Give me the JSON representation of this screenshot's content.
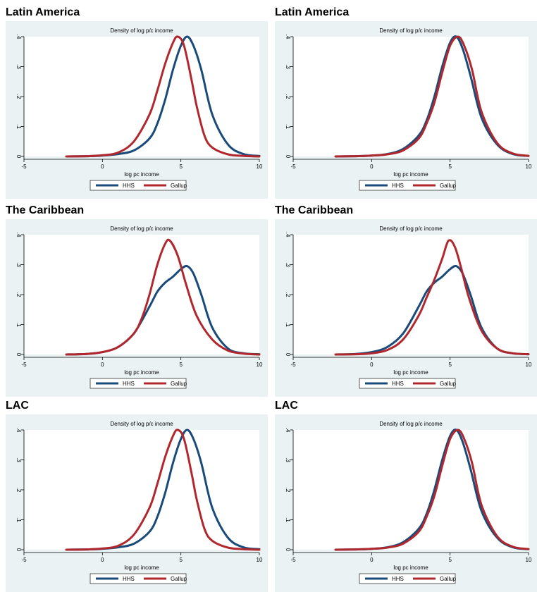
{
  "colors": {
    "hhs": "#1a4a7a",
    "gallup": "#b0282e",
    "bg": "#eaf2f3"
  },
  "chart_data": [
    {
      "type": "line",
      "title": "Latin America",
      "subtitle": "Density of log p/c income",
      "xlabel": "log pc income",
      "ylabel": "",
      "xlim": [
        -5,
        10
      ],
      "ylim": [
        0,
        0.4
      ],
      "xticks": [
        "-5",
        "0",
        "5",
        "10"
      ],
      "yticks": [
        "0",
        ".1",
        ".2",
        ".3",
        ".4"
      ],
      "legend_position": "bottom",
      "series": [
        {
          "name": "HHS",
          "color": "#1a4a7a",
          "x": [
            -2.3,
            -1,
            0,
            1,
            2,
            3,
            3.5,
            4,
            4.5,
            5,
            5.4,
            5.8,
            6.3,
            7,
            8,
            9,
            10
          ],
          "y": [
            0,
            0.001,
            0.003,
            0.008,
            0.02,
            0.06,
            0.11,
            0.19,
            0.29,
            0.37,
            0.4,
            0.37,
            0.29,
            0.14,
            0.04,
            0.008,
            0.002
          ]
        },
        {
          "name": "Gallup",
          "color": "#b0282e",
          "x": [
            -2.3,
            -1,
            0,
            1,
            2,
            3,
            3.5,
            4,
            4.5,
            4.8,
            5.2,
            5.7,
            6,
            6.5,
            7,
            8,
            9,
            10
          ],
          "y": [
            0,
            0.001,
            0.004,
            0.013,
            0.05,
            0.14,
            0.22,
            0.31,
            0.38,
            0.4,
            0.37,
            0.25,
            0.17,
            0.07,
            0.03,
            0.007,
            0.002,
            0
          ]
        }
      ]
    },
    {
      "type": "line",
      "title": "Latin America",
      "subtitle": "Density of log p/c income",
      "xlabel": "log pc income",
      "ylabel": "",
      "xlim": [
        -5,
        10
      ],
      "ylim": [
        0,
        0.4
      ],
      "xticks": [
        "-5",
        "0",
        "5",
        "10"
      ],
      "yticks": [
        "0",
        ".1",
        ".2",
        ".3",
        ".4"
      ],
      "legend_position": "bottom",
      "series": [
        {
          "name": "HHS",
          "color": "#1a4a7a",
          "x": [
            -2.3,
            -1,
            0,
            1,
            2,
            3,
            3.5,
            4,
            4.5,
            5,
            5.4,
            5.8,
            6.3,
            7,
            8,
            9,
            10
          ],
          "y": [
            0,
            0.001,
            0.003,
            0.008,
            0.025,
            0.07,
            0.12,
            0.2,
            0.3,
            0.38,
            0.4,
            0.36,
            0.27,
            0.13,
            0.04,
            0.008,
            0.002
          ]
        },
        {
          "name": "Gallup",
          "color": "#b0282e",
          "x": [
            -2.3,
            -1,
            0,
            1,
            2,
            3,
            3.5,
            4,
            4.5,
            5,
            5.5,
            5.9,
            6.4,
            7,
            8,
            9,
            10
          ],
          "y": [
            0,
            0.001,
            0.003,
            0.007,
            0.02,
            0.06,
            0.11,
            0.18,
            0.28,
            0.37,
            0.4,
            0.37,
            0.29,
            0.15,
            0.045,
            0.01,
            0.002
          ]
        }
      ]
    },
    {
      "type": "line",
      "title": "The Caribbean",
      "subtitle": "Density of log p/c income",
      "xlabel": "log pc income",
      "ylabel": "",
      "xlim": [
        -5,
        10
      ],
      "ylim": [
        0,
        0.4
      ],
      "xticks": [
        "-5",
        "0",
        "5",
        "10"
      ],
      "yticks": [
        "0",
        ".1",
        ".2",
        ".3",
        ".4"
      ],
      "legend_position": "bottom",
      "series": [
        {
          "name": "HHS",
          "color": "#1a4a7a",
          "x": [
            -2.3,
            -1,
            0,
            1,
            2,
            3,
            3.5,
            4,
            4.5,
            5,
            5.4,
            5.8,
            6.3,
            7,
            8,
            9,
            10
          ],
          "y": [
            0,
            0.002,
            0.008,
            0.025,
            0.07,
            0.16,
            0.21,
            0.24,
            0.26,
            0.285,
            0.295,
            0.27,
            0.2,
            0.09,
            0.02,
            0.004,
            0.001
          ]
        },
        {
          "name": "Gallup",
          "color": "#b0282e",
          "x": [
            -2.3,
            -1,
            0,
            1,
            2,
            2.5,
            3,
            3.5,
            4,
            4.3,
            4.8,
            5.3,
            6,
            7,
            8,
            9,
            10
          ],
          "y": [
            0,
            0.002,
            0.008,
            0.025,
            0.07,
            0.12,
            0.2,
            0.3,
            0.37,
            0.38,
            0.33,
            0.24,
            0.13,
            0.05,
            0.013,
            0.003,
            0
          ]
        }
      ]
    },
    {
      "type": "line",
      "title": "The Caribbean",
      "subtitle": "Density of log p/c income",
      "xlabel": "log pc income",
      "ylabel": "",
      "xlim": [
        -5,
        10
      ],
      "ylim": [
        0,
        0.4
      ],
      "xticks": [
        "-5",
        "0",
        "5",
        "10"
      ],
      "yticks": [
        "0",
        ".1",
        ".2",
        ".3",
        ".4"
      ],
      "legend_position": "bottom",
      "series": [
        {
          "name": "HHS",
          "color": "#1a4a7a",
          "x": [
            -2.3,
            -1,
            0,
            1,
            2,
            3,
            3.5,
            4,
            4.5,
            5,
            5.4,
            5.8,
            6.3,
            7,
            8,
            9,
            10
          ],
          "y": [
            0,
            0.002,
            0.008,
            0.025,
            0.07,
            0.16,
            0.21,
            0.24,
            0.26,
            0.285,
            0.295,
            0.27,
            0.2,
            0.09,
            0.02,
            0.004,
            0.001
          ]
        },
        {
          "name": "Gallup",
          "color": "#b0282e",
          "x": [
            -2.3,
            -1,
            0,
            1,
            2,
            3,
            3.5,
            4,
            4.5,
            4.9,
            5.3,
            5.7,
            6.2,
            7,
            8,
            9,
            10
          ],
          "y": [
            0,
            0.001,
            0.004,
            0.015,
            0.05,
            0.13,
            0.19,
            0.25,
            0.32,
            0.38,
            0.36,
            0.29,
            0.19,
            0.08,
            0.02,
            0.004,
            0.001
          ]
        }
      ]
    },
    {
      "type": "line",
      "title": "LAC",
      "subtitle": "Density of log p/c income",
      "xlabel": "log pc income",
      "ylabel": "",
      "xlim": [
        -5,
        10
      ],
      "ylim": [
        0,
        0.4
      ],
      "xticks": [
        "-5",
        "0",
        "5",
        "10"
      ],
      "yticks": [
        "0",
        ".1",
        ".2",
        ".3",
        ".4"
      ],
      "legend_position": "bottom",
      "series": [
        {
          "name": "HHS",
          "color": "#1a4a7a",
          "x": [
            -2.3,
            -1,
            0,
            1,
            2,
            3,
            3.5,
            4,
            4.5,
            5,
            5.4,
            5.8,
            6.3,
            7,
            8,
            9,
            10
          ],
          "y": [
            0,
            0.001,
            0.003,
            0.008,
            0.02,
            0.06,
            0.11,
            0.19,
            0.29,
            0.37,
            0.4,
            0.37,
            0.29,
            0.14,
            0.04,
            0.008,
            0.002
          ]
        },
        {
          "name": "Gallup",
          "color": "#b0282e",
          "x": [
            -2.3,
            -1,
            0,
            1,
            2,
            3,
            3.5,
            4,
            4.5,
            4.8,
            5.2,
            5.7,
            6,
            6.5,
            7,
            8,
            9,
            10
          ],
          "y": [
            0,
            0.001,
            0.004,
            0.013,
            0.05,
            0.14,
            0.22,
            0.31,
            0.38,
            0.4,
            0.37,
            0.25,
            0.17,
            0.07,
            0.03,
            0.007,
            0.002,
            0
          ]
        }
      ]
    },
    {
      "type": "line",
      "title": "LAC",
      "subtitle": "Density of log p/c income",
      "xlabel": "log pc income",
      "ylabel": "",
      "xlim": [
        -5,
        10
      ],
      "ylim": [
        0,
        0.4
      ],
      "xticks": [
        "-5",
        "0",
        "5",
        "10"
      ],
      "yticks": [
        "0",
        ".1",
        ".2",
        ".3",
        ".4"
      ],
      "legend_position": "bottom",
      "series": [
        {
          "name": "HHS",
          "color": "#1a4a7a",
          "x": [
            -2.3,
            -1,
            0,
            1,
            2,
            3,
            3.5,
            4,
            4.5,
            5,
            5.4,
            5.8,
            6.3,
            7,
            8,
            9,
            10
          ],
          "y": [
            0,
            0.001,
            0.003,
            0.008,
            0.025,
            0.07,
            0.12,
            0.2,
            0.3,
            0.38,
            0.4,
            0.36,
            0.27,
            0.13,
            0.04,
            0.008,
            0.002
          ]
        },
        {
          "name": "Gallup",
          "color": "#b0282e",
          "x": [
            -2.3,
            -1,
            0,
            1,
            2,
            3,
            3.5,
            4,
            4.5,
            5,
            5.5,
            5.9,
            6.4,
            7,
            8,
            9,
            10
          ],
          "y": [
            0,
            0.001,
            0.003,
            0.007,
            0.02,
            0.06,
            0.11,
            0.18,
            0.28,
            0.37,
            0.4,
            0.37,
            0.29,
            0.15,
            0.045,
            0.01,
            0.002
          ]
        }
      ]
    }
  ]
}
